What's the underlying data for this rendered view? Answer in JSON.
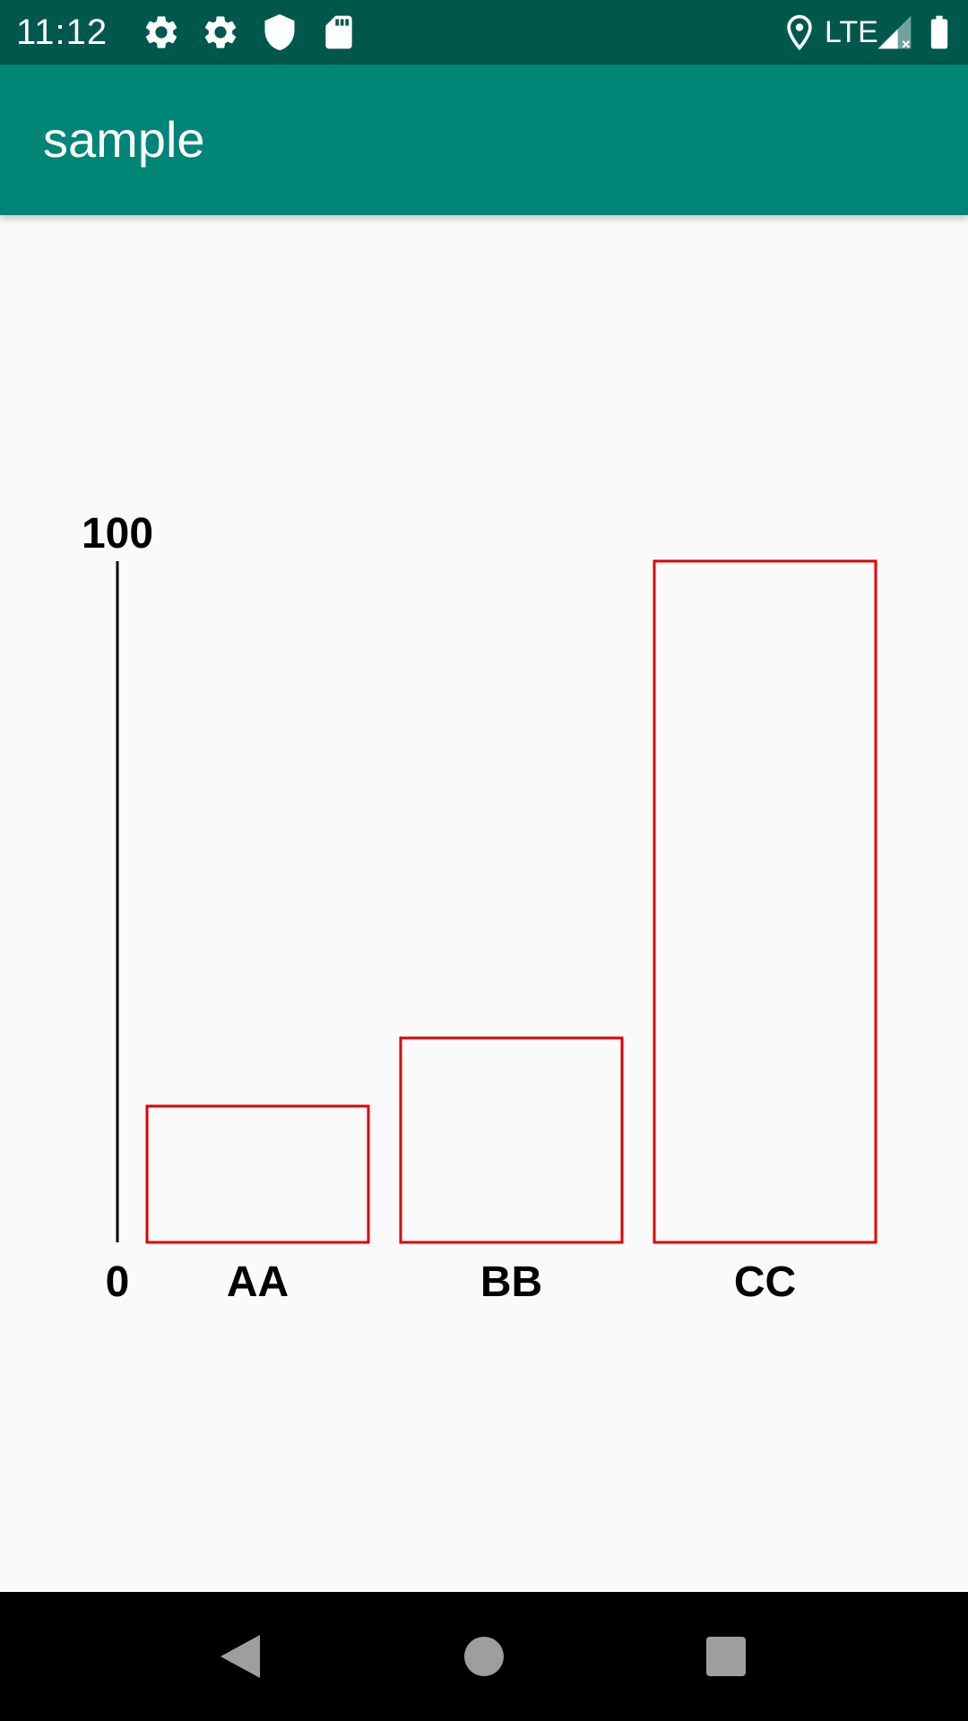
{
  "status_bar": {
    "time": "11:12",
    "network": "LTE",
    "icons": [
      "gear-icon",
      "gear-icon",
      "shield-icon",
      "sd-card-icon",
      "location-icon",
      "signal-icon",
      "battery-icon"
    ],
    "background_color": "#00574b"
  },
  "app_bar": {
    "title": "sample",
    "background_color": "#008577"
  },
  "chart_data": {
    "type": "bar",
    "categories": [
      "AA",
      "BB",
      "CC"
    ],
    "values": [
      20,
      30,
      100
    ],
    "ylim": [
      0,
      100
    ],
    "y_tick_labels": [
      "0",
      "100"
    ],
    "bar_fill": "none",
    "bar_stroke_color": "#e10000",
    "grid": false,
    "legend": "none"
  },
  "nav_bar": {
    "buttons": [
      "back-icon",
      "home-icon",
      "recents-icon"
    ],
    "icon_color": "#9e9e9e"
  }
}
